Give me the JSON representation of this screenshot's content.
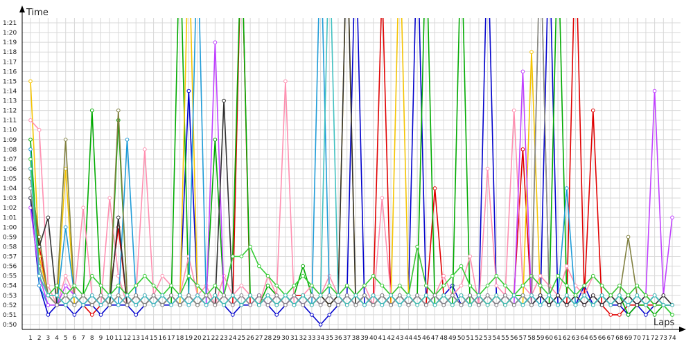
{
  "chart_data": {
    "type": "line",
    "xlabel": "Laps",
    "ylabel": "Time",
    "grid": true,
    "legend": "none",
    "x": [
      1,
      2,
      3,
      4,
      5,
      6,
      7,
      8,
      9,
      10,
      11,
      12,
      13,
      14,
      15,
      16,
      17,
      18,
      19,
      20,
      21,
      22,
      23,
      24,
      25,
      26,
      27,
      28,
      29,
      30,
      31,
      32,
      33,
      34,
      35,
      36,
      37,
      38,
      39,
      40,
      41,
      42,
      43,
      44,
      45,
      46,
      47,
      48,
      49,
      50,
      51,
      52,
      53,
      54,
      55,
      56,
      57,
      58,
      59,
      60,
      61,
      62,
      63,
      64,
      65,
      66,
      67,
      68,
      69,
      70,
      71,
      72,
      73,
      74
    ],
    "xlim": [
      1,
      74
    ],
    "yticks": [
      "0:50",
      "0:51",
      "0:52",
      "0:53",
      "0:54",
      "0:55",
      "0:56",
      "0:57",
      "0:58",
      "0:59",
      "1:00",
      "1:01",
      "1:02",
      "1:03",
      "1:04",
      "1:05",
      "1:06",
      "1:07",
      "1:08",
      "1:09",
      "1:10",
      "1:11",
      "1:12",
      "1:13",
      "1:14",
      "1:15",
      "1:16",
      "1:17",
      "1:18",
      "1:19",
      "1:20",
      "1:21"
    ],
    "ylim": [
      49.5,
      81.5
    ],
    "y_unit": "seconds",
    "series": [
      {
        "color": "#e00000",
        "values": [
          66,
          58,
          53,
          52,
          52,
          53,
          52,
          51,
          52,
          53,
          60,
          52,
          53,
          52,
          53,
          52,
          53,
          52,
          53,
          52,
          53,
          52,
          53,
          52,
          90,
          52,
          53,
          52,
          53,
          52,
          53,
          53,
          52,
          53,
          52,
          53,
          52,
          53,
          52,
          53,
          85,
          52,
          53,
          52,
          53,
          52,
          64,
          53,
          52,
          53,
          52,
          53,
          52,
          53,
          52,
          53,
          68,
          52,
          53,
          52,
          53,
          52,
          90,
          53,
          72,
          52,
          51,
          51,
          52,
          52,
          52,
          52,
          52,
          52
        ]
      },
      {
        "color": "#0000cc",
        "values": [
          63,
          54,
          51,
          52,
          52,
          51,
          52,
          52,
          51,
          52,
          52,
          52,
          51,
          52,
          53,
          52,
          52,
          53,
          74,
          53,
          52,
          53,
          52,
          51,
          52,
          52,
          53,
          52,
          51,
          52,
          53,
          52,
          51,
          50,
          51,
          52,
          53,
          90,
          52,
          53,
          52,
          53,
          52,
          53,
          90,
          53,
          52,
          53,
          54,
          52,
          53,
          52,
          90,
          53,
          52,
          53,
          52,
          53,
          52,
          90,
          52,
          53,
          52,
          54,
          52,
          53,
          52,
          52,
          51,
          52,
          51,
          52,
          52,
          52
        ]
      },
      {
        "color": "#00aa00",
        "values": [
          69,
          55,
          53,
          52,
          53,
          52,
          53,
          72,
          53,
          52,
          71,
          53,
          52,
          53,
          52,
          53,
          52,
          90,
          53,
          52,
          53,
          69,
          53,
          57,
          90,
          53,
          52,
          54,
          53,
          52,
          53,
          56,
          53,
          52,
          53,
          52,
          53,
          52,
          53,
          52,
          53,
          52,
          53,
          52,
          53,
          90,
          52,
          53,
          52,
          90,
          52,
          53,
          52,
          53,
          52,
          53,
          53,
          52,
          53,
          52,
          90,
          53,
          52,
          53,
          52,
          53,
          52,
          53,
          51,
          52,
          52,
          51,
          52,
          51
        ]
      },
      {
        "color": "#f5c400",
        "values": [
          75,
          57,
          53,
          52,
          66,
          52,
          53,
          52,
          53,
          52,
          53,
          52,
          53,
          52,
          53,
          52,
          53,
          52,
          90,
          53,
          52,
          53,
          52,
          53,
          52,
          53,
          52,
          53,
          52,
          53,
          52,
          53,
          52,
          53,
          52,
          53,
          90,
          52,
          53,
          52,
          53,
          52,
          90,
          53,
          52,
          53,
          52,
          53,
          52,
          53,
          52,
          53,
          52,
          53,
          52,
          53,
          52,
          78,
          53,
          52,
          53,
          52,
          53,
          52,
          53,
          52,
          53,
          52,
          53,
          52,
          53,
          52,
          52,
          52
        ]
      },
      {
        "color": "#ff8fb0",
        "values": [
          71,
          70,
          54,
          52,
          55,
          53,
          62,
          53,
          52,
          63,
          55,
          52,
          53,
          68,
          53,
          55,
          54,
          53,
          57,
          53,
          54,
          52,
          55,
          53,
          54,
          53,
          52,
          55,
          53,
          75,
          52,
          53,
          54,
          53,
          55,
          53,
          54,
          53,
          54,
          52,
          63,
          53,
          54,
          53,
          58,
          54,
          53,
          55,
          53,
          54,
          57,
          52,
          66,
          54,
          53,
          72,
          54,
          53,
          55,
          54,
          53,
          56,
          54,
          53,
          55,
          54,
          53,
          54,
          53,
          52,
          53,
          53,
          52,
          52
        ]
      },
      {
        "color": "#1e9bd7",
        "values": [
          68,
          54,
          52,
          52,
          60,
          53,
          52,
          53,
          52,
          53,
          52,
          69,
          53,
          52,
          53,
          52,
          53,
          52,
          53,
          90,
          52,
          53,
          52,
          53,
          52,
          53,
          52,
          53,
          52,
          53,
          52,
          53,
          52,
          90,
          53,
          52,
          53,
          52,
          53,
          52,
          53,
          52,
          53,
          52,
          53,
          52,
          53,
          52,
          53,
          52,
          53,
          52,
          53,
          52,
          53,
          52,
          53,
          52,
          53,
          52,
          53,
          64,
          52,
          53,
          52,
          53,
          52,
          53,
          52,
          53,
          52,
          53,
          52,
          52
        ]
      },
      {
        "color": "#808040",
        "values": [
          65,
          59,
          53,
          53,
          69,
          53,
          52,
          53,
          52,
          53,
          72,
          53,
          52,
          53,
          52,
          53,
          52,
          53,
          52,
          53,
          52,
          53,
          52,
          53,
          52,
          53,
          52,
          53,
          52,
          53,
          52,
          53,
          52,
          53,
          52,
          53,
          52,
          53,
          52,
          53,
          52,
          53,
          52,
          53,
          52,
          53,
          52,
          53,
          52,
          53,
          52,
          53,
          52,
          53,
          52,
          53,
          52,
          53,
          90,
          53,
          52,
          53,
          52,
          53,
          52,
          53,
          52,
          53,
          59,
          53,
          52,
          53,
          52,
          52
        ]
      },
      {
        "color": "#c040ff",
        "values": [
          62,
          55,
          52,
          52,
          54,
          53,
          52,
          53,
          52,
          53,
          52,
          53,
          52,
          53,
          52,
          53,
          52,
          53,
          52,
          53,
          52,
          79,
          53,
          52,
          53,
          52,
          53,
          52,
          53,
          52,
          53,
          52,
          53,
          52,
          53,
          52,
          53,
          52,
          53,
          52,
          53,
          52,
          53,
          52,
          53,
          52,
          53,
          52,
          53,
          52,
          53,
          52,
          53,
          52,
          53,
          52,
          76,
          52,
          53,
          52,
          53,
          52,
          53,
          52,
          53,
          52,
          53,
          52,
          53,
          52,
          53,
          74,
          53,
          61
        ]
      },
      {
        "color": "#303030",
        "values": [
          63,
          58,
          61,
          52,
          53,
          52,
          53,
          52,
          53,
          52,
          61,
          52,
          53,
          52,
          53,
          52,
          53,
          52,
          53,
          52,
          53,
          52,
          73,
          53,
          52,
          53,
          52,
          53,
          52,
          53,
          52,
          53,
          52,
          53,
          52,
          53,
          90,
          52,
          53,
          52,
          53,
          52,
          53,
          52,
          53,
          52,
          53,
          52,
          53,
          52,
          53,
          52,
          53,
          52,
          53,
          52,
          53,
          52,
          53,
          52,
          53,
          52,
          53,
          52,
          53,
          52,
          53,
          52,
          53,
          52,
          53,
          52,
          53,
          52
        ]
      },
      {
        "color": "#33cc33",
        "values": [
          67,
          56,
          53,
          54,
          53,
          54,
          53,
          55,
          54,
          53,
          54,
          53,
          54,
          55,
          54,
          53,
          54,
          53,
          55,
          54,
          53,
          54,
          53,
          57,
          57,
          58,
          56,
          55,
          54,
          53,
          54,
          55,
          54,
          53,
          54,
          53,
          54,
          53,
          54,
          55,
          54,
          53,
          54,
          53,
          58,
          54,
          53,
          54,
          55,
          56,
          54,
          53,
          54,
          55,
          54,
          53,
          54,
          55,
          54,
          53,
          55,
          54,
          53,
          54,
          55,
          54,
          53,
          54,
          53,
          54,
          53,
          52,
          52,
          51
        ]
      },
      {
        "color": "#8a8a8a",
        "values": [
          64,
          56,
          53,
          52,
          53,
          52,
          53,
          52,
          53,
          52,
          53,
          52,
          53,
          52,
          53,
          52,
          53,
          52,
          53,
          52,
          53,
          52,
          53,
          52,
          53,
          52,
          53,
          52,
          53,
          52,
          53,
          52,
          53,
          52,
          53,
          52,
          53,
          52,
          53,
          52,
          53,
          52,
          53,
          52,
          53,
          52,
          53,
          52,
          53,
          52,
          53,
          52,
          53,
          52,
          53,
          52,
          53,
          52,
          90,
          53,
          52,
          53,
          52,
          53,
          52,
          53,
          52,
          53,
          52,
          53,
          52,
          53,
          52,
          52
        ]
      },
      {
        "color": "#40c0c0",
        "values": [
          66,
          55,
          53,
          53,
          52,
          53,
          52,
          53,
          52,
          53,
          52,
          53,
          52,
          53,
          52,
          53,
          52,
          53,
          52,
          53,
          52,
          53,
          52,
          53,
          52,
          53,
          52,
          53,
          52,
          53,
          52,
          53,
          52,
          53,
          90,
          53,
          52,
          53,
          52,
          53,
          52,
          53,
          52,
          53,
          52,
          53,
          52,
          53,
          52,
          53,
          52,
          53,
          52,
          53,
          52,
          53,
          52,
          53,
          52,
          53,
          52,
          53,
          52,
          53,
          52,
          53,
          52,
          53,
          52,
          53,
          52,
          53,
          52,
          52
        ]
      }
    ]
  }
}
